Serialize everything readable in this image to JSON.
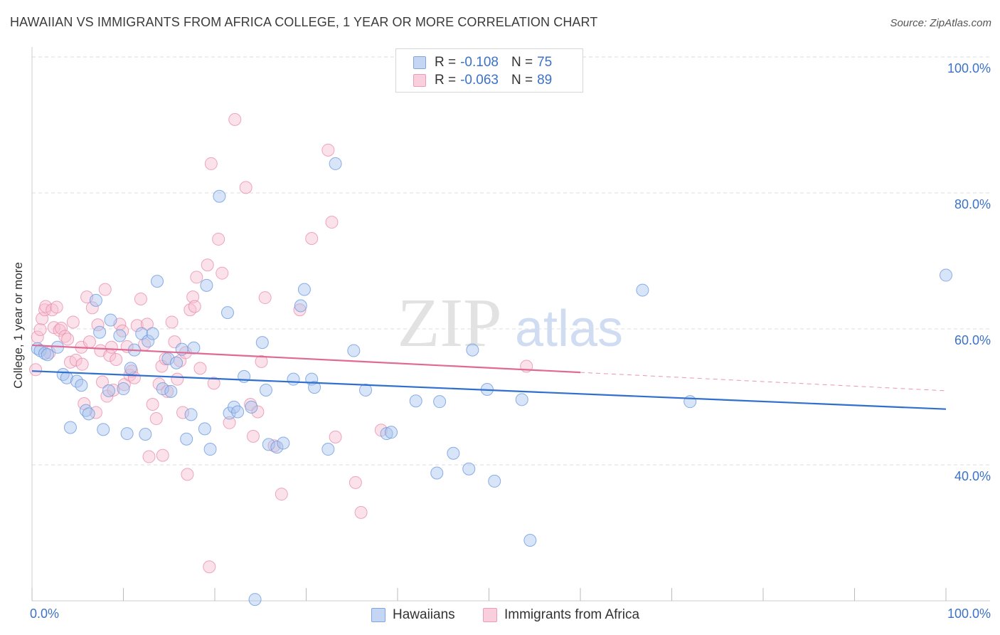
{
  "header": {
    "title": "HAWAIIAN VS IMMIGRANTS FROM AFRICA COLLEGE, 1 YEAR OR MORE CORRELATION CHART",
    "source": "Source: ZipAtlas.com"
  },
  "watermark": {
    "zip": "ZIP",
    "atlas": "atlas"
  },
  "legend_top": {
    "rows": [
      {
        "r_label": "R =",
        "r_value": "-0.108",
        "n_label": "N =",
        "n_value": "75",
        "color": "#a9c4ee"
      },
      {
        "r_label": "R =",
        "r_value": "-0.063",
        "n_label": "N =",
        "n_value": "89",
        "color": "#f3b3c8"
      }
    ]
  },
  "legend_bottom": {
    "items": [
      {
        "label": "Hawaiians",
        "color": "#a9c4ee"
      },
      {
        "label": "Immigrants from Africa",
        "color": "#f3b3c8"
      }
    ]
  },
  "colors": {
    "blue_fill": "#a9c4ee",
    "blue_stroke": "#6e9be0",
    "blue_line": "#2f6fcf",
    "pink_fill": "#f6bfd1",
    "pink_stroke": "#e88aaa",
    "pink_line": "#e06a94",
    "grid": "#dddddd",
    "axis_label": "#3b72c8"
  },
  "chart_data": {
    "type": "scatter",
    "title": "HAWAIIAN VS IMMIGRANTS FROM AFRICA COLLEGE, 1 YEAR OR MORE CORRELATION CHART",
    "xlabel": "",
    "ylabel": "College, 1 year or more",
    "xlim": [
      0,
      100
    ],
    "ylim": [
      20,
      104
    ],
    "x_tick_labels": [
      "0.0%",
      "100.0%"
    ],
    "y_tick_labels": [
      "40.0%",
      "60.0%",
      "80.0%",
      "100.0%"
    ],
    "y_ticks": [
      40,
      60,
      80,
      100
    ],
    "grid": true,
    "legend_position": "top-center",
    "series": [
      {
        "name": "Hawaiians",
        "R": -0.108,
        "N": 75,
        "trend": {
          "x0": 0,
          "y0": 53.8,
          "x1": 100,
          "y1": 48.2
        },
        "points": [
          [
            0.6,
            57.1
          ],
          [
            0.9,
            56.8
          ],
          [
            1.4,
            56.4
          ],
          [
            1.7,
            56.2
          ],
          [
            2.8,
            57.3
          ],
          [
            3.4,
            53.3
          ],
          [
            3.8,
            52.8
          ],
          [
            4.2,
            45.5
          ],
          [
            4.9,
            52.3
          ],
          [
            5.4,
            51.7
          ],
          [
            5.9,
            48.0
          ],
          [
            6.2,
            47.5
          ],
          [
            7.0,
            64.2
          ],
          [
            7.4,
            59.5
          ],
          [
            7.8,
            45.2
          ],
          [
            8.4,
            50.9
          ],
          [
            8.6,
            61.3
          ],
          [
            9.6,
            59.0
          ],
          [
            10.0,
            51.2
          ],
          [
            10.4,
            44.6
          ],
          [
            10.8,
            54.2
          ],
          [
            11.2,
            56.9
          ],
          [
            12.0,
            59.3
          ],
          [
            12.4,
            44.5
          ],
          [
            12.7,
            58.2
          ],
          [
            13.2,
            59.3
          ],
          [
            13.7,
            67.0
          ],
          [
            14.3,
            51.2
          ],
          [
            14.9,
            55.6
          ],
          [
            15.2,
            50.8
          ],
          [
            15.8,
            55.0
          ],
          [
            16.4,
            57.0
          ],
          [
            16.9,
            43.8
          ],
          [
            17.4,
            47.4
          ],
          [
            17.7,
            57.2
          ],
          [
            18.9,
            45.3
          ],
          [
            19.1,
            66.4
          ],
          [
            19.5,
            42.3
          ],
          [
            20.5,
            79.5
          ],
          [
            21.4,
            62.4
          ],
          [
            21.6,
            47.6
          ],
          [
            22.1,
            48.5
          ],
          [
            22.5,
            47.8
          ],
          [
            23.2,
            53.0
          ],
          [
            24.0,
            48.5
          ],
          [
            24.4,
            20.2
          ],
          [
            25.2,
            58.0
          ],
          [
            25.6,
            51.0
          ],
          [
            25.9,
            43.0
          ],
          [
            26.8,
            42.6
          ],
          [
            27.5,
            43.2
          ],
          [
            28.6,
            52.6
          ],
          [
            29.4,
            63.4
          ],
          [
            29.8,
            65.8
          ],
          [
            30.6,
            52.6
          ],
          [
            30.9,
            51.4
          ],
          [
            32.4,
            42.3
          ],
          [
            33.2,
            84.3
          ],
          [
            35.2,
            56.8
          ],
          [
            36.5,
            51.0
          ],
          [
            38.8,
            44.6
          ],
          [
            39.3,
            44.8
          ],
          [
            42.0,
            49.4
          ],
          [
            44.3,
            38.8
          ],
          [
            44.6,
            49.3
          ],
          [
            46.1,
            41.7
          ],
          [
            47.8,
            39.4
          ],
          [
            48.2,
            56.9
          ],
          [
            49.8,
            51.1
          ],
          [
            50.6,
            37.6
          ],
          [
            53.6,
            49.6
          ],
          [
            54.5,
            28.9
          ],
          [
            66.8,
            65.7
          ],
          [
            72.0,
            49.3
          ],
          [
            100.0,
            67.9
          ]
        ]
      },
      {
        "name": "Immigrants from Africa",
        "R": -0.063,
        "N": 89,
        "trend": {
          "x0": 0,
          "y0": 57.6,
          "x1": 60,
          "y1": 53.6,
          "dash_x1": 100,
          "dash_y1": 50.9
        },
        "points": [
          [
            0.4,
            54.0
          ],
          [
            0.6,
            58.8
          ],
          [
            0.9,
            59.9
          ],
          [
            1.1,
            61.5
          ],
          [
            1.4,
            62.8
          ],
          [
            1.5,
            63.3
          ],
          [
            1.9,
            56.5
          ],
          [
            2.2,
            62.8
          ],
          [
            2.4,
            60.2
          ],
          [
            2.7,
            63.2
          ],
          [
            3.0,
            59.8
          ],
          [
            3.2,
            60.1
          ],
          [
            3.6,
            58.9
          ],
          [
            3.9,
            58.5
          ],
          [
            4.2,
            55.1
          ],
          [
            4.5,
            61.0
          ],
          [
            4.8,
            55.4
          ],
          [
            5.4,
            57.3
          ],
          [
            5.5,
            54.8
          ],
          [
            5.7,
            49.0
          ],
          [
            6.0,
            64.7
          ],
          [
            6.3,
            58.1
          ],
          [
            6.6,
            63.1
          ],
          [
            7.0,
            47.7
          ],
          [
            7.2,
            60.6
          ],
          [
            7.5,
            56.8
          ],
          [
            7.7,
            52.2
          ],
          [
            8.0,
            65.8
          ],
          [
            8.2,
            50.1
          ],
          [
            8.5,
            56.1
          ],
          [
            8.7,
            57.3
          ],
          [
            8.9,
            51.0
          ],
          [
            9.2,
            55.5
          ],
          [
            9.6,
            60.7
          ],
          [
            9.9,
            59.7
          ],
          [
            10.1,
            51.8
          ],
          [
            10.4,
            57.4
          ],
          [
            10.7,
            53.2
          ],
          [
            10.9,
            53.8
          ],
          [
            11.2,
            52.8
          ],
          [
            11.5,
            60.5
          ],
          [
            11.9,
            64.4
          ],
          [
            12.3,
            57.7
          ],
          [
            12.6,
            60.7
          ],
          [
            12.8,
            41.2
          ],
          [
            13.2,
            48.9
          ],
          [
            13.6,
            46.8
          ],
          [
            13.9,
            51.9
          ],
          [
            14.2,
            54.5
          ],
          [
            14.3,
            41.4
          ],
          [
            14.6,
            55.6
          ],
          [
            14.8,
            50.8
          ],
          [
            15.3,
            61.0
          ],
          [
            15.6,
            58.1
          ],
          [
            15.9,
            52.6
          ],
          [
            16.2,
            55.3
          ],
          [
            16.5,
            47.7
          ],
          [
            16.8,
            56.5
          ],
          [
            17.0,
            38.6
          ],
          [
            17.3,
            62.8
          ],
          [
            17.6,
            64.7
          ],
          [
            17.8,
            63.3
          ],
          [
            18.0,
            67.6
          ],
          [
            18.4,
            54.2
          ],
          [
            19.2,
            69.4
          ],
          [
            19.4,
            25.0
          ],
          [
            19.6,
            84.3
          ],
          [
            19.9,
            52.0
          ],
          [
            20.4,
            73.2
          ],
          [
            20.8,
            68.2
          ],
          [
            21.6,
            46.2
          ],
          [
            22.2,
            90.8
          ],
          [
            23.4,
            80.8
          ],
          [
            23.9,
            48.9
          ],
          [
            24.2,
            44.2
          ],
          [
            24.7,
            47.8
          ],
          [
            25.1,
            55.2
          ],
          [
            25.5,
            64.6
          ],
          [
            26.5,
            42.8
          ],
          [
            27.3,
            35.7
          ],
          [
            29.3,
            62.8
          ],
          [
            30.6,
            73.3
          ],
          [
            32.4,
            86.3
          ],
          [
            32.8,
            75.7
          ],
          [
            33.2,
            44.1
          ],
          [
            35.4,
            37.4
          ],
          [
            36.0,
            33.0
          ],
          [
            38.2,
            45.1
          ],
          [
            54.1,
            54.5
          ]
        ]
      }
    ]
  }
}
